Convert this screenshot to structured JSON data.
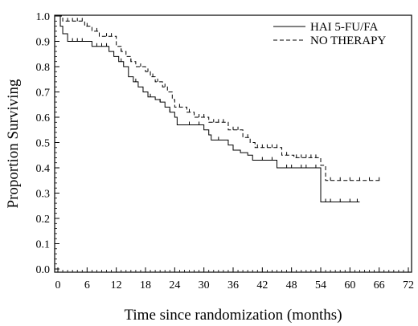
{
  "chart_data": {
    "type": "line",
    "subtype": "kaplan-meier step",
    "title": "",
    "xlabel": "Time since randomization (months)",
    "ylabel": "Proportion Surviving",
    "xlim": [
      0,
      72
    ],
    "ylim": [
      0,
      1.0
    ],
    "xticks": [
      0,
      6,
      12,
      18,
      24,
      30,
      36,
      42,
      48,
      54,
      60,
      66,
      72
    ],
    "yticks": [
      0.0,
      0.1,
      0.2,
      0.3,
      0.4,
      0.5,
      0.6,
      0.7,
      0.8,
      0.9,
      1.0
    ],
    "xtick_labels": [
      "0",
      "6",
      "12",
      "18",
      "24",
      "30",
      "36",
      "42",
      "48",
      "54",
      "60",
      "66",
      "72"
    ],
    "ytick_labels": [
      "0.0",
      "0.1",
      "0.2",
      "0.3",
      "0.4",
      "0.5",
      "0.6",
      "0.7",
      "0.8",
      "0.9",
      "1.0"
    ],
    "grid": false,
    "legend_position": "top-right",
    "series": [
      {
        "name": "HAI 5-FU/FA",
        "style": "solid",
        "color": "#000000",
        "steps": [
          [
            0,
            1.0
          ],
          [
            0.5,
            0.96
          ],
          [
            1,
            0.93
          ],
          [
            2,
            0.9
          ],
          [
            7,
            0.88
          ],
          [
            10.5,
            0.86
          ],
          [
            11.5,
            0.84
          ],
          [
            12.5,
            0.82
          ],
          [
            13.5,
            0.8
          ],
          [
            14.5,
            0.76
          ],
          [
            15.5,
            0.74
          ],
          [
            16.5,
            0.72
          ],
          [
            17.5,
            0.7
          ],
          [
            18.5,
            0.68
          ],
          [
            20,
            0.67
          ],
          [
            21,
            0.66
          ],
          [
            22,
            0.64
          ],
          [
            23,
            0.62
          ],
          [
            24,
            0.6
          ],
          [
            24.5,
            0.57
          ],
          [
            30,
            0.55
          ],
          [
            31,
            0.53
          ],
          [
            31.5,
            0.51
          ],
          [
            35,
            0.49
          ],
          [
            36,
            0.47
          ],
          [
            37.5,
            0.46
          ],
          [
            39,
            0.45
          ],
          [
            40,
            0.43
          ],
          [
            45,
            0.4
          ],
          [
            54,
            0.265
          ]
        ],
        "x_end": 62,
        "censor_marks": [
          3,
          4,
          5,
          8,
          9,
          10,
          13,
          16,
          19,
          21,
          23,
          27,
          29,
          33,
          36,
          42,
          44,
          47,
          48,
          50,
          51,
          53,
          55,
          56,
          58,
          60,
          61.5
        ]
      },
      {
        "name": "NO THERAPY",
        "style": "dashed",
        "color": "#000000",
        "steps": [
          [
            0,
            1.0
          ],
          [
            1,
            0.98
          ],
          [
            5.5,
            0.96
          ],
          [
            7,
            0.94
          ],
          [
            8.5,
            0.92
          ],
          [
            12,
            0.88
          ],
          [
            13,
            0.86
          ],
          [
            14,
            0.84
          ],
          [
            15,
            0.82
          ],
          [
            16,
            0.8
          ],
          [
            18,
            0.78
          ],
          [
            19,
            0.76
          ],
          [
            20,
            0.74
          ],
          [
            21.5,
            0.72
          ],
          [
            22.5,
            0.7
          ],
          [
            23.5,
            0.67
          ],
          [
            24,
            0.64
          ],
          [
            26.5,
            0.62
          ],
          [
            28,
            0.6
          ],
          [
            31,
            0.58
          ],
          [
            35,
            0.55
          ],
          [
            38,
            0.52
          ],
          [
            39.5,
            0.5
          ],
          [
            40.5,
            0.48
          ],
          [
            46,
            0.45
          ],
          [
            48.5,
            0.44
          ],
          [
            54,
            0.41
          ],
          [
            55,
            0.35
          ]
        ],
        "x_end": 66.5,
        "censor_marks": [
          2,
          3,
          4,
          5,
          6,
          8,
          10,
          11,
          13,
          15,
          17,
          18.5,
          19.5,
          20.5,
          22,
          25,
          27,
          29,
          30,
          32,
          33,
          34,
          36,
          37,
          39,
          41,
          42,
          43,
          44,
          45,
          47,
          49,
          50,
          51,
          52,
          53,
          56,
          58,
          60,
          62,
          64,
          66
        ]
      }
    ]
  },
  "legend": [
    {
      "label": "HAI 5-FU/FA",
      "style": "solid"
    },
    {
      "label": "NO THERAPY",
      "style": "dashed"
    }
  ]
}
